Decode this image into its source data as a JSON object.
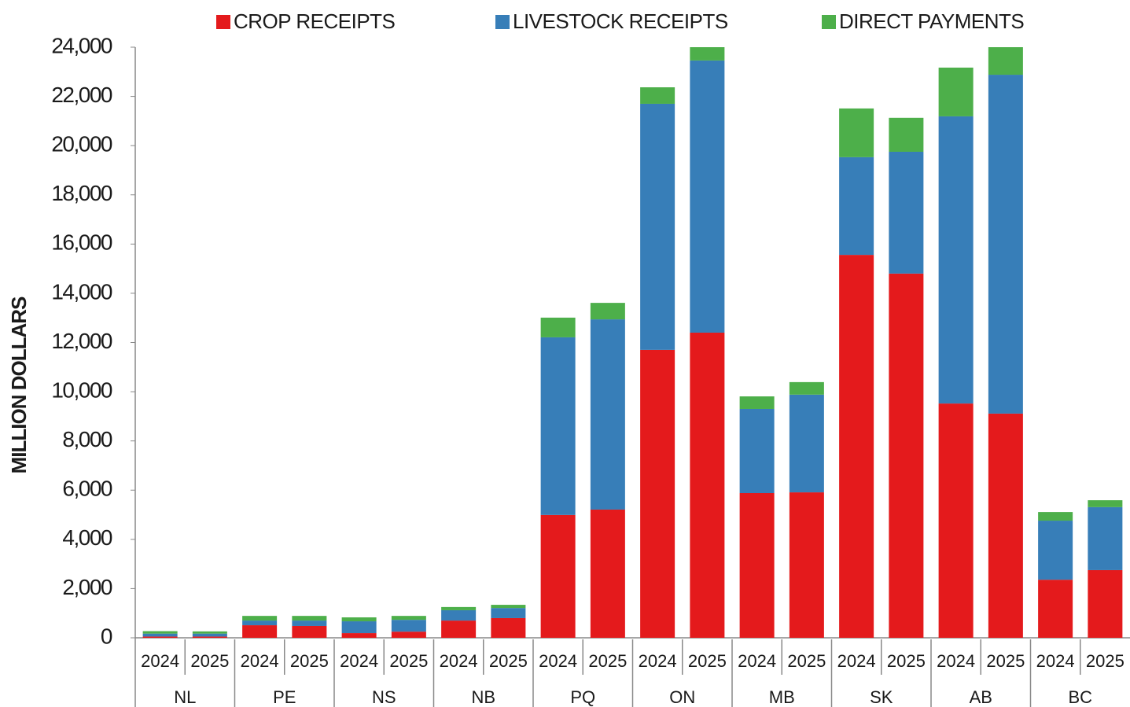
{
  "chart_data": {
    "type": "stacked_bar",
    "y_label": "MILLION DOLLARS",
    "categories": [
      "2024",
      "2025",
      "2024",
      "2025",
      "2024",
      "2025",
      "2024",
      "2025",
      "2024",
      "2025",
      "2024",
      "2025",
      "2024",
      "2025",
      "2024",
      "2025",
      "2024",
      "2025",
      "2024",
      "2025"
    ],
    "groups": [
      "NL",
      "PE",
      "NS",
      "NB",
      "PQ",
      "ON",
      "MB",
      "SK",
      "AB",
      "BC"
    ],
    "series": [
      {
        "name": "CROP RECEIPTS",
        "color": "#e41a1c",
        "values": [
          50,
          50,
          510,
          480,
          190,
          250,
          700,
          800,
          4990,
          5210,
          11700,
          12400,
          5880,
          5910,
          15560,
          14800,
          9520,
          9110,
          2360,
          2750
        ]
      },
      {
        "name": "LIVESTOCK RECEIPTS",
        "color": "#377eb8",
        "values": [
          120,
          120,
          190,
          220,
          480,
          480,
          420,
          410,
          7220,
          7730,
          10000,
          11060,
          3420,
          3970,
          3970,
          4950,
          11670,
          13770,
          2400,
          2560
        ]
      },
      {
        "name": "DIRECT PAYMENTS",
        "color": "#4daf4a",
        "values": [
          100,
          90,
          190,
          190,
          160,
          160,
          130,
          130,
          800,
          670,
          670,
          540,
          510,
          510,
          1980,
          1380,
          1980,
          1120,
          350,
          280
        ]
      }
    ],
    "ylim": [
      0,
      24000
    ],
    "yticks": [
      0,
      {
        "value": 2000,
        "label": "2,000"
      },
      {
        "value": 4000,
        "label": "4,000"
      },
      {
        "value": 6000,
        "label": "6,000"
      },
      {
        "value": 8000,
        "label": "8,000"
      },
      {
        "value": 10000,
        "label": "10,000"
      },
      {
        "value": 12000,
        "label": "12,000"
      },
      {
        "value": 14000,
        "label": "14,000"
      },
      {
        "value": 16000,
        "label": "16,000"
      },
      {
        "value": 18000,
        "label": "18,000"
      },
      {
        "value": 20000,
        "label": "20,000"
      },
      {
        "value": 22000,
        "label": "22,000"
      },
      {
        "value": 24000,
        "label": "24,000"
      }
    ],
    "grid": false,
    "legend": "top"
  }
}
